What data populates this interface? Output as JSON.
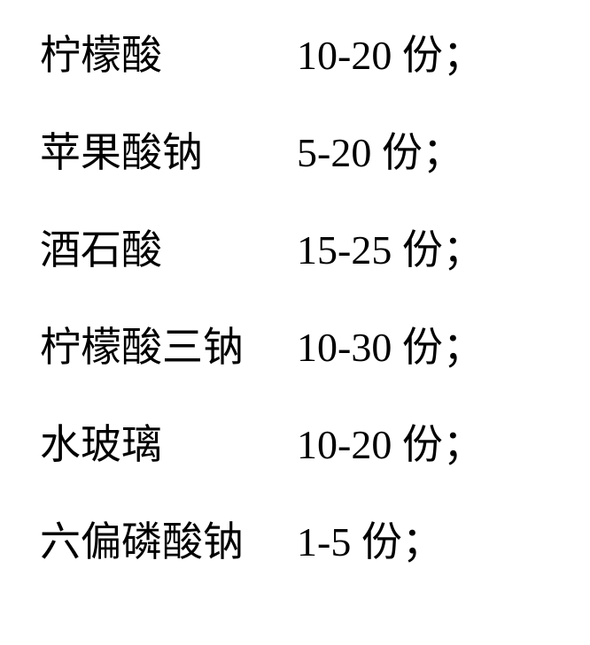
{
  "rows": [
    {
      "name": "柠檬酸",
      "amount": "10-20 份；"
    },
    {
      "name": "苹果酸钠",
      "amount": "5-20 份；"
    },
    {
      "name": "酒石酸",
      "amount": "15-25 份；"
    },
    {
      "name": "柠檬酸三钠",
      "amount": "10-30 份；"
    },
    {
      "name": "水玻璃",
      "amount": "10-20 份；"
    },
    {
      "name": "六偏磷酸钠",
      "amount": "1-5 份；"
    }
  ]
}
